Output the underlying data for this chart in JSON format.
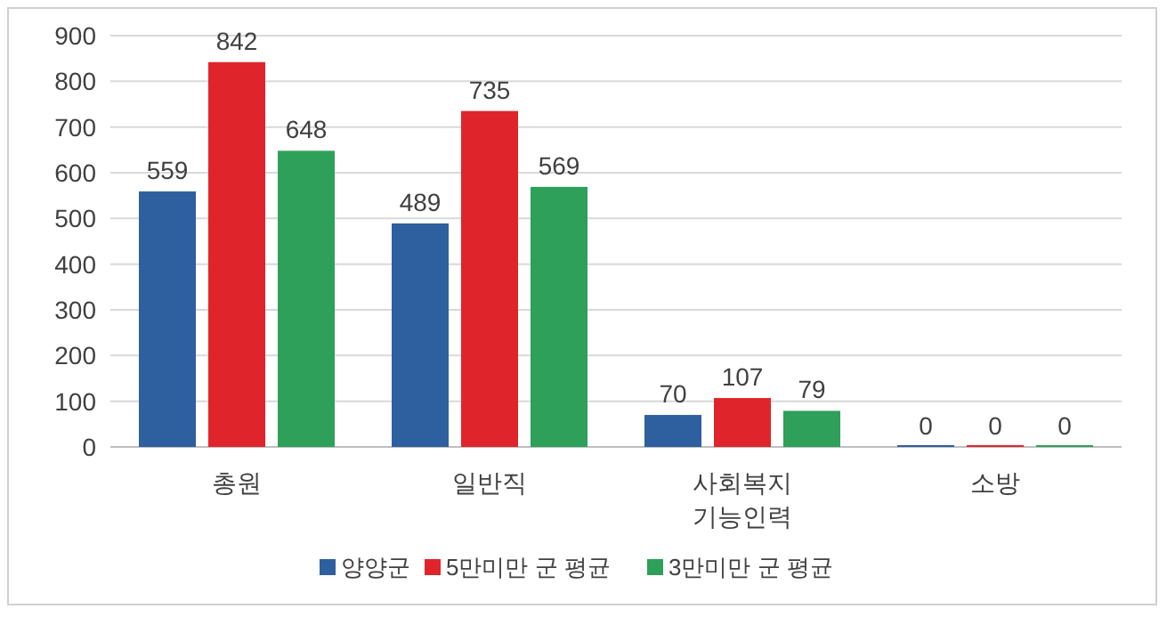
{
  "chart_data": {
    "type": "bar",
    "categories": [
      "총원",
      "일반직",
      "사회복지\n기능인력",
      "소방"
    ],
    "series": [
      {
        "name": "양양군",
        "color": "#2e5f9e",
        "values": [
          559,
          489,
          70,
          0
        ]
      },
      {
        "name": "5만미만 군 평균",
        "color": "#e0242b",
        "values": [
          842,
          735,
          107,
          0
        ]
      },
      {
        "name": "3만미만 군 평균",
        "color": "#2ea05a",
        "values": [
          648,
          569,
          79,
          0
        ]
      }
    ],
    "ylim": [
      0,
      900
    ],
    "yticks": [
      0,
      100,
      200,
      300,
      400,
      500,
      600,
      700,
      800,
      900
    ],
    "grid": "y",
    "legend": "bottom",
    "data_labels": true
  }
}
